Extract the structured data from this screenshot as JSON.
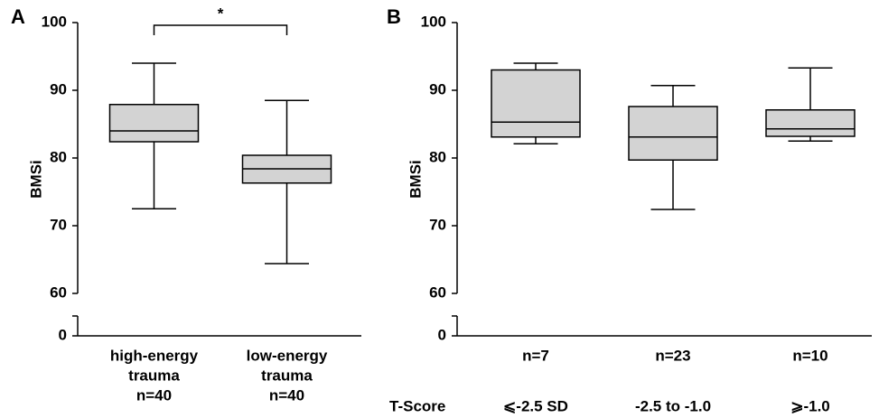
{
  "chart_data": [
    {
      "type": "box",
      "panel": "A",
      "y_label": "BMSi",
      "categories": [
        [
          "high-energy",
          "trauma",
          "n=40"
        ],
        [
          "low-energy",
          "trauma",
          "n=40"
        ]
      ],
      "boxes": [
        {
          "min": 72.5,
          "q1": 82.4,
          "median": 84,
          "q3": 87.9,
          "max": 94
        },
        {
          "min": 64.4,
          "q1": 76.3,
          "median": 78.4,
          "q3": 80.4,
          "max": 88.5
        }
      ],
      "color": "#d3d3d3",
      "ylim": [
        60,
        100
      ],
      "yticks": [
        60,
        70,
        80,
        90,
        100
      ],
      "lower_ytick": 0,
      "annotations": [
        {
          "text": "*",
          "between": [
            0,
            1
          ]
        }
      ]
    },
    {
      "type": "box",
      "panel": "B",
      "y_label": "BMSi",
      "categories": [
        [
          "n=7"
        ],
        [
          "n=23"
        ],
        [
          "n=10"
        ]
      ],
      "row_label": "T-Score",
      "row_values": [
        "⩽-2.5 SD",
        "-2.5 to -1.0",
        "⩾-1.0"
      ],
      "boxes": [
        {
          "min": 82.1,
          "q1": 83.1,
          "median": 85.3,
          "q3": 93,
          "max": 94
        },
        {
          "min": 72.4,
          "q1": 79.7,
          "median": 83.1,
          "q3": 87.6,
          "max": 90.7
        },
        {
          "min": 82.5,
          "q1": 83.2,
          "median": 84.3,
          "q3": 87.1,
          "max": 93.3
        }
      ],
      "color": "#d3d3d3",
      "ylim": [
        60,
        100
      ],
      "yticks": [
        60,
        70,
        80,
        90,
        100
      ],
      "lower_ytick": 0
    }
  ]
}
